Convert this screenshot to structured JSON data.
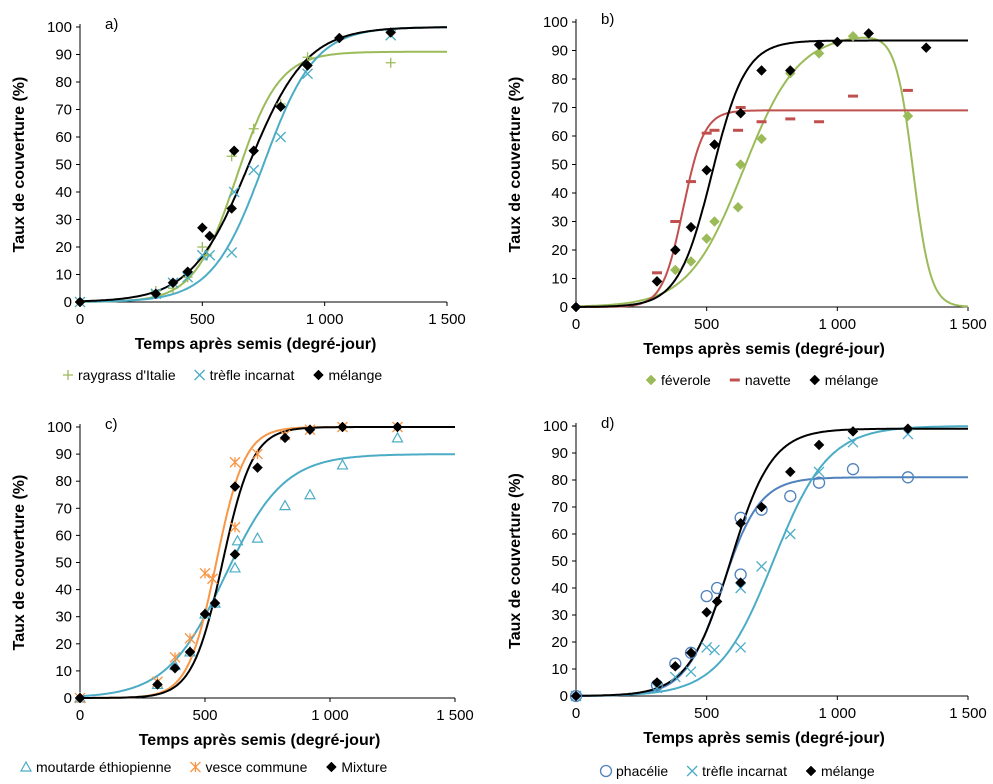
{
  "chart_data": [
    {
      "type": "scatter",
      "panel_label": "a)",
      "xlabel": "Temps après semis (degré-jour)",
      "ylabel": "Taux de couverture (%)",
      "xlim": [
        0,
        1500
      ],
      "ylim": [
        0,
        100
      ],
      "x_ticks": [
        "0",
        "500",
        "1 000",
        "1 500"
      ],
      "y_ticks": [
        "0",
        "10",
        "20",
        "30",
        "40",
        "50",
        "60",
        "70",
        "80",
        "90",
        "100"
      ],
      "legend_position": "bottom",
      "series": [
        {
          "name": "raygrass d'Italie",
          "marker": "plus",
          "color": "#9bbb59",
          "points": [
            [
              0,
              0
            ],
            [
              310,
              4
            ],
            [
              380,
              5
            ],
            [
              440,
              9
            ],
            [
              500,
              20
            ],
            [
              520,
              17
            ],
            [
              620,
              53
            ],
            [
              710,
              63
            ],
            [
              820,
              72
            ],
            [
              930,
              89
            ],
            [
              1060,
              96
            ],
            [
              1270,
              87
            ]
          ],
          "fit": {
            "kind": "logistic",
            "max": 91,
            "mid": 640,
            "rate": 0.0115
          }
        },
        {
          "name": "trèfle incarnat",
          "marker": "x",
          "color": "#4bacc6",
          "points": [
            [
              0,
              0
            ],
            [
              310,
              3
            ],
            [
              380,
              7
            ],
            [
              440,
              9
            ],
            [
              500,
              17
            ],
            [
              530,
              17
            ],
            [
              620,
              18
            ],
            [
              630,
              40
            ],
            [
              710,
              48
            ],
            [
              820,
              60
            ],
            [
              930,
              83
            ],
            [
              1270,
              97
            ]
          ],
          "fit": {
            "kind": "logistic",
            "max": 100,
            "mid": 750,
            "rate": 0.0095
          }
        },
        {
          "name": "mélange",
          "marker": "diamond",
          "color": "#000000",
          "points": [
            [
              0,
              0
            ],
            [
              310,
              3
            ],
            [
              380,
              7
            ],
            [
              440,
              11
            ],
            [
              500,
              27
            ],
            [
              530,
              24
            ],
            [
              620,
              34
            ],
            [
              630,
              55
            ],
            [
              710,
              55
            ],
            [
              820,
              71
            ],
            [
              930,
              86
            ],
            [
              1060,
              96
            ],
            [
              1270,
              98
            ]
          ],
          "fit": {
            "kind": "logistic",
            "max": 100,
            "mid": 690,
            "rate": 0.0085
          }
        }
      ]
    },
    {
      "type": "scatter",
      "panel_label": "b)",
      "xlabel": "Temps après semis (degré-jour)",
      "ylabel": "Taux de couverture (%)",
      "xlim": [
        0,
        1500
      ],
      "ylim": [
        0,
        100
      ],
      "x_ticks": [
        "0",
        "500",
        "1 000",
        "1 500"
      ],
      "y_ticks": [
        "0",
        "10",
        "20",
        "30",
        "40",
        "50",
        "60",
        "70",
        "80",
        "90",
        "100"
      ],
      "legend_position": "bottom",
      "series": [
        {
          "name": "féverole",
          "marker": "diamond",
          "color": "#9bbb59",
          "points": [
            [
              0,
              0
            ],
            [
              310,
              9
            ],
            [
              380,
              13
            ],
            [
              440,
              16
            ],
            [
              500,
              24
            ],
            [
              530,
              30
            ],
            [
              620,
              35
            ],
            [
              630,
              50
            ],
            [
              710,
              59
            ],
            [
              820,
              82
            ],
            [
              930,
              89
            ],
            [
              1060,
              95
            ],
            [
              1270,
              67
            ]
          ],
          "fit": {
            "kind": "logistic_decline",
            "max": 96,
            "mid": 640,
            "rate": 0.0095,
            "mid2": 1290,
            "rate2": 0.03
          }
        },
        {
          "name": "navette",
          "marker": "dash",
          "color": "#c0504d",
          "points": [
            [
              310,
              12
            ],
            [
              380,
              30
            ],
            [
              440,
              44
            ],
            [
              500,
              61
            ],
            [
              530,
              62
            ],
            [
              620,
              62
            ],
            [
              630,
              70
            ],
            [
              710,
              65
            ],
            [
              820,
              66
            ],
            [
              930,
              65
            ],
            [
              1060,
              74
            ],
            [
              1270,
              76
            ]
          ],
          "fit": {
            "kind": "logistic",
            "max": 69,
            "mid": 410,
            "rate": 0.025
          }
        },
        {
          "name": "mélange",
          "marker": "diamond",
          "color": "#000000",
          "points": [
            [
              0,
              0
            ],
            [
              310,
              9
            ],
            [
              380,
              20
            ],
            [
              440,
              28
            ],
            [
              500,
              48
            ],
            [
              530,
              57
            ],
            [
              630,
              68
            ],
            [
              710,
              83
            ],
            [
              820,
              83
            ],
            [
              930,
              92
            ],
            [
              1000,
              93
            ],
            [
              1120,
              96
            ],
            [
              1340,
              91
            ]
          ],
          "fit": {
            "kind": "logistic",
            "max": 93.5,
            "mid": 520,
            "rate": 0.0155
          }
        }
      ]
    },
    {
      "type": "scatter",
      "panel_label": "c)",
      "xlabel": "Temps après semis (degré-jour)",
      "ylabel": "Taux de couverture (%)",
      "xlim": [
        0,
        1500
      ],
      "ylim": [
        0,
        100
      ],
      "x_ticks": [
        "0",
        "500",
        "1 000",
        "1 500"
      ],
      "y_ticks": [
        "0",
        "10",
        "20",
        "30",
        "40",
        "50",
        "60",
        "70",
        "80",
        "90",
        "100"
      ],
      "legend_position": "bottom",
      "series": [
        {
          "name": "moutarde éthiopienne",
          "marker": "triangle",
          "color": "#4bacc6",
          "points": [
            [
              0,
              0
            ],
            [
              310,
              5
            ],
            [
              380,
              12
            ],
            [
              440,
              17
            ],
            [
              500,
              31
            ],
            [
              540,
              35
            ],
            [
              620,
              48
            ],
            [
              630,
              58
            ],
            [
              710,
              59
            ],
            [
              820,
              71
            ],
            [
              920,
              75
            ],
            [
              1050,
              86
            ],
            [
              1270,
              96
            ]
          ],
          "fit": {
            "kind": "logistic",
            "max": 90,
            "mid": 580,
            "rate": 0.0085
          }
        },
        {
          "name": "vesce commune",
          "marker": "asterisk",
          "color": "#f79646",
          "points": [
            [
              0,
              0
            ],
            [
              310,
              6
            ],
            [
              380,
              15
            ],
            [
              440,
              22
            ],
            [
              500,
              46
            ],
            [
              530,
              44
            ],
            [
              620,
              63
            ],
            [
              620,
              87
            ],
            [
              710,
              90
            ],
            [
              820,
              97
            ],
            [
              920,
              99
            ],
            [
              1050,
              100
            ],
            [
              1270,
              100
            ]
          ],
          "fit": {
            "kind": "logistic",
            "max": 100,
            "mid": 545,
            "rate": 0.0175
          }
        },
        {
          "name": "Mixture",
          "marker": "diamond",
          "color": "#000000",
          "points": [
            [
              0,
              0
            ],
            [
              310,
              5
            ],
            [
              380,
              11
            ],
            [
              440,
              17
            ],
            [
              500,
              31
            ],
            [
              540,
              35
            ],
            [
              620,
              53
            ],
            [
              620,
              78
            ],
            [
              710,
              85
            ],
            [
              820,
              96
            ],
            [
              920,
              99
            ],
            [
              1050,
              100
            ],
            [
              1270,
              100
            ]
          ],
          "fit": {
            "kind": "logistic",
            "max": 100,
            "mid": 570,
            "rate": 0.0165
          }
        }
      ]
    },
    {
      "type": "scatter",
      "panel_label": "d)",
      "xlabel": "Temps après semis (degré-jour)",
      "ylabel": "Taux de couverture (%)",
      "xlim": [
        0,
        1500
      ],
      "ylim": [
        0,
        100
      ],
      "x_ticks": [
        "0",
        "500",
        "1 000",
        "1 500"
      ],
      "y_ticks": [
        "0",
        "10",
        "20",
        "30",
        "40",
        "50",
        "60",
        "70",
        "80",
        "90",
        "100"
      ],
      "legend_position": "bottom",
      "series": [
        {
          "name": "phacélie",
          "marker": "circle",
          "color": "#4f81bd",
          "points": [
            [
              0,
              0
            ],
            [
              310,
              4
            ],
            [
              380,
              12
            ],
            [
              440,
              16
            ],
            [
              500,
              37
            ],
            [
              540,
              40
            ],
            [
              630,
              45
            ],
            [
              630,
              66
            ],
            [
              710,
              69
            ],
            [
              820,
              74
            ],
            [
              930,
              79
            ],
            [
              1060,
              84
            ],
            [
              1270,
              81
            ]
          ],
          "fit": {
            "kind": "logistic",
            "max": 81,
            "mid": 560,
            "rate": 0.014
          }
        },
        {
          "name": "trèfle incarnat",
          "marker": "x",
          "color": "#4bacc6",
          "points": [
            [
              0,
              0
            ],
            [
              310,
              3
            ],
            [
              380,
              7
            ],
            [
              440,
              9
            ],
            [
              500,
              18
            ],
            [
              530,
              17
            ],
            [
              630,
              18
            ],
            [
              630,
              40
            ],
            [
              710,
              48
            ],
            [
              820,
              60
            ],
            [
              930,
              83
            ],
            [
              1060,
              94
            ],
            [
              1270,
              97
            ]
          ],
          "fit": {
            "kind": "logistic",
            "max": 100,
            "mid": 755,
            "rate": 0.0095
          }
        },
        {
          "name": "mélange",
          "marker": "diamond",
          "color": "#000000",
          "points": [
            [
              0,
              0
            ],
            [
              310,
              5
            ],
            [
              380,
              11
            ],
            [
              440,
              16
            ],
            [
              500,
              31
            ],
            [
              540,
              35
            ],
            [
              630,
              42
            ],
            [
              630,
              64
            ],
            [
              710,
              70
            ],
            [
              820,
              83
            ],
            [
              930,
              93
            ],
            [
              1060,
              98
            ],
            [
              1270,
              99
            ]
          ],
          "fit": {
            "kind": "logistic",
            "max": 99,
            "mid": 590,
            "rate": 0.0125
          }
        }
      ]
    }
  ]
}
